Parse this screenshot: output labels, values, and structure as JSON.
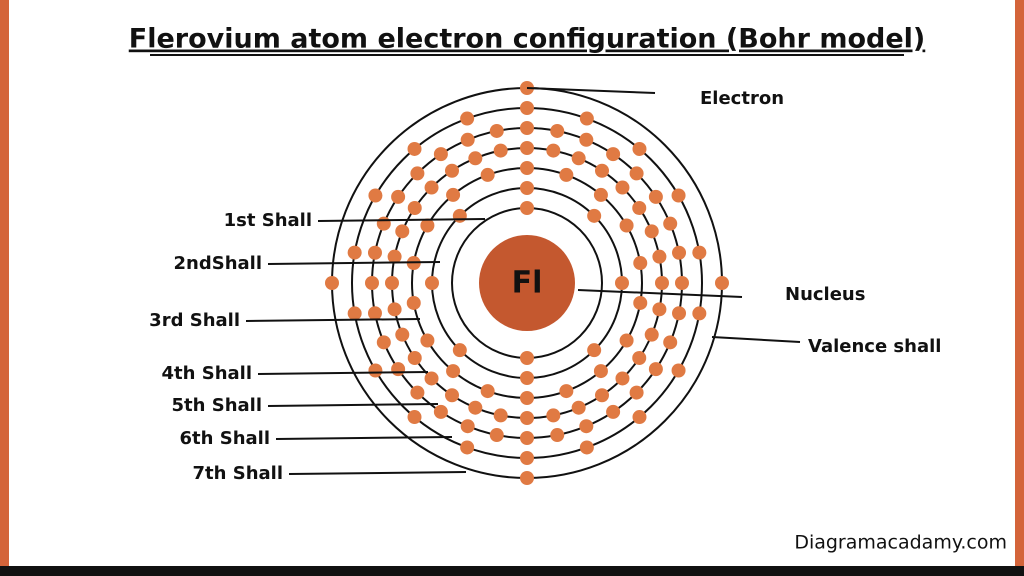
{
  "header": {
    "title": "Flerovium atom electron configuration (Bohr model)"
  },
  "nucleus": {
    "symbol": "Fl",
    "label": "Nucleus"
  },
  "shells": [
    {
      "label": "1st Shall",
      "electrons": 2
    },
    {
      "label": "2ndShall",
      "electrons": 8
    },
    {
      "label": "3rd Shall",
      "electrons": 18
    },
    {
      "label": "4th Shall",
      "electrons": 32
    },
    {
      "label": "5th Shall",
      "electrons": 32
    },
    {
      "label": "6th Shall",
      "electrons": 18
    },
    {
      "label": "7th Shall",
      "electrons": 4
    }
  ],
  "electron_label": "Electron",
  "valence_label": "Valence shall",
  "footer": {
    "site": "Diagramacadamy.com"
  }
}
